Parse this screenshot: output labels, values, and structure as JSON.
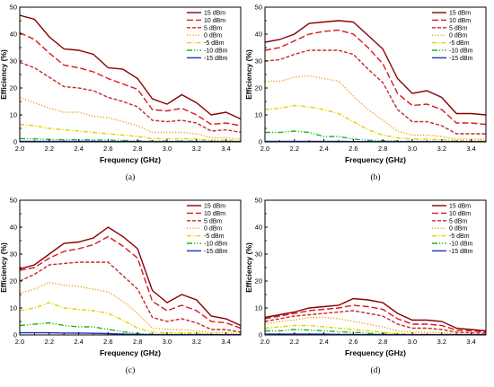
{
  "figure": {
    "colors": {
      "15 dBm": "#8B0000",
      "10 dBm": "#D7191C",
      "5 dBm": "#C62828",
      "0 dBm": "#F39C12",
      "-5 dBm": "#E6D000",
      "-10 dBm": "#1DB322",
      "-15 dBm": "#1F2FBF"
    }
  },
  "chart_data": [
    {
      "type": "line",
      "panel_label": "(a)",
      "xlabel": "Frequency (GHz)",
      "ylabel": "Efficiency (%)",
      "xlim": [
        2.0,
        3.5
      ],
      "ylim": [
        0,
        50
      ],
      "xticks": [
        "2.0",
        "2.2",
        "2.4",
        "2.6",
        "2.8",
        "3.0",
        "3.2",
        "3.4"
      ],
      "yticks": [
        "0",
        "10",
        "20",
        "30",
        "40",
        "50"
      ],
      "legend_position": "top-right",
      "x": [
        2.0,
        2.1,
        2.2,
        2.3,
        2.4,
        2.5,
        2.6,
        2.7,
        2.8,
        2.9,
        3.0,
        3.1,
        3.2,
        3.3,
        3.4,
        3.5
      ],
      "series": [
        {
          "name": "15 dBm",
          "values": [
            47,
            45.5,
            39,
            34.5,
            34,
            32.5,
            27.5,
            27,
            23.5,
            16,
            14,
            17.5,
            14.5,
            10,
            11,
            8.5
          ]
        },
        {
          "name": "10 dBm",
          "values": [
            40.5,
            38,
            33,
            28.5,
            27.5,
            26,
            23.5,
            21.5,
            19.5,
            12,
            11.5,
            12.5,
            10,
            6.5,
            7,
            6
          ]
        },
        {
          "name": "5 dBm",
          "values": [
            29.5,
            27.5,
            24,
            20.5,
            20,
            19,
            16.5,
            15,
            13,
            8,
            7.5,
            8,
            7,
            4,
            4.5,
            3.5
          ]
        },
        {
          "name": "0 dBm",
          "values": [
            16.5,
            14.5,
            12.5,
            11,
            11,
            9.5,
            9,
            7.5,
            6,
            3.5,
            3.5,
            3.5,
            3,
            1.5,
            1.5,
            1
          ]
        },
        {
          "name": "-5 dBm",
          "values": [
            6.5,
            6,
            5,
            4.5,
            4,
            3.5,
            3,
            2.5,
            2,
            1.2,
            1.2,
            1.2,
            1,
            0.6,
            0.6,
            0.5
          ]
        },
        {
          "name": "-10 dBm",
          "values": [
            1.2,
            1.1,
            0.9,
            0.8,
            0.8,
            0.7,
            0.6,
            0.5,
            0.4,
            0.3,
            0.3,
            0.3,
            0.3,
            0.2,
            0.2,
            0.2
          ]
        },
        {
          "name": "-15 dBm",
          "values": [
            0.2,
            0.2,
            0.2,
            0.2,
            0.2,
            0.2,
            0.1,
            0.1,
            0.1,
            0.1,
            0.1,
            0.1,
            0.1,
            0.1,
            0.1,
            0.1
          ]
        }
      ]
    },
    {
      "type": "line",
      "panel_label": "(b)",
      "xlabel": "Frequency (GHz)",
      "ylabel": "Efficiency (%)",
      "xlim": [
        2.0,
        3.5
      ],
      "ylim": [
        0,
        50
      ],
      "xticks": [
        "2.0",
        "2.2",
        "2.4",
        "2.6",
        "2.8",
        "3.0",
        "3.2",
        "3.4"
      ],
      "yticks": [
        "0",
        "10",
        "20",
        "30",
        "40",
        "50"
      ],
      "legend_position": "top-right",
      "x": [
        2.0,
        2.1,
        2.2,
        2.3,
        2.4,
        2.5,
        2.6,
        2.7,
        2.8,
        2.9,
        3.0,
        3.1,
        3.2,
        3.3,
        3.4,
        3.5
      ],
      "series": [
        {
          "name": "15 dBm",
          "values": [
            37,
            38,
            40,
            44,
            44.5,
            45,
            44.5,
            39.5,
            34.5,
            23.5,
            18,
            19,
            16.5,
            10.5,
            10.5,
            10
          ]
        },
        {
          "name": "10 dBm",
          "values": [
            34,
            35,
            37.5,
            40,
            41,
            41.5,
            40,
            35,
            29,
            18,
            13.5,
            14,
            12,
            7,
            7,
            6.5
          ]
        },
        {
          "name": "5 dBm",
          "values": [
            30,
            30.5,
            32.5,
            34,
            34,
            34,
            32.5,
            27,
            22,
            12,
            7.5,
            7.5,
            6,
            3,
            3,
            3
          ]
        },
        {
          "name": "0 dBm",
          "values": [
            22.5,
            22.5,
            24,
            24.5,
            23.5,
            22.5,
            17,
            12,
            8,
            4,
            2.5,
            2.5,
            2,
            1,
            1,
            1
          ]
        },
        {
          "name": "-5 dBm",
          "values": [
            12,
            12.5,
            13.5,
            13,
            12,
            10.5,
            7.5,
            4.5,
            2.5,
            1.5,
            1,
            1,
            0.8,
            0.5,
            0.5,
            0.5
          ]
        },
        {
          "name": "-10 dBm",
          "values": [
            3.5,
            3.5,
            4,
            3.5,
            2,
            2,
            1,
            0.6,
            0.4,
            0.3,
            0.2,
            0.2,
            0.2,
            0.1,
            0.1,
            0.1
          ]
        },
        {
          "name": "-15 dBm",
          "values": [
            0.2,
            0.2,
            0.2,
            0.2,
            0.2,
            0.2,
            0.1,
            0.1,
            0.1,
            0.1,
            0.1,
            0.1,
            0.1,
            0.1,
            0.1,
            0.1
          ]
        }
      ]
    },
    {
      "type": "line",
      "panel_label": "(c)",
      "xlabel": "Frequency (GHz)",
      "ylabel": "Efficiency (%)",
      "xlim": [
        2.0,
        3.5
      ],
      "ylim": [
        0,
        50
      ],
      "xticks": [
        "2.0",
        "2.2",
        "2.4",
        "2.6",
        "2.8",
        "3.0",
        "3.2",
        "3.4"
      ],
      "yticks": [
        "0",
        "10",
        "20",
        "30",
        "40",
        "50"
      ],
      "legend_position": "top-right",
      "x": [
        2.0,
        2.1,
        2.2,
        2.3,
        2.4,
        2.5,
        2.6,
        2.7,
        2.8,
        2.9,
        3.0,
        3.1,
        3.2,
        3.3,
        3.4,
        3.5
      ],
      "series": [
        {
          "name": "15 dBm",
          "values": [
            24.5,
            26,
            30,
            34,
            34.5,
            36,
            40,
            36.5,
            32,
            16.5,
            12,
            15,
            13,
            7,
            6,
            3.5
          ]
        },
        {
          "name": "10 dBm",
          "values": [
            24,
            25,
            28.5,
            31,
            32,
            33.5,
            36.5,
            33,
            28.5,
            12.5,
            9,
            11,
            9,
            5,
            4.5,
            2.5
          ]
        },
        {
          "name": "5 dBm",
          "values": [
            20,
            22.5,
            26,
            26.5,
            27,
            27,
            27,
            22,
            17,
            6.5,
            5,
            6,
            4.5,
            2,
            2,
            1
          ]
        },
        {
          "name": "0 dBm",
          "values": [
            15.5,
            17,
            19.5,
            18.5,
            18,
            17,
            16,
            12.5,
            8,
            2.5,
            2,
            2,
            1.5,
            0.8,
            0.8,
            0.5
          ]
        },
        {
          "name": "-5 dBm",
          "values": [
            9,
            10,
            12,
            10,
            9.5,
            9,
            8,
            5.5,
            2.5,
            1,
            0.8,
            0.8,
            0.6,
            0.3,
            0.3,
            0.2
          ]
        },
        {
          "name": "-10 dBm",
          "values": [
            3.5,
            4,
            4.5,
            3.5,
            3,
            3,
            2,
            1.2,
            0.5,
            0.3,
            0.2,
            0.2,
            0.2,
            0.1,
            0.1,
            0.1
          ]
        },
        {
          "name": "-15 dBm",
          "values": [
            0.8,
            0.8,
            0.8,
            0.7,
            0.7,
            0.6,
            0.5,
            0.3,
            0.2,
            0.1,
            0.1,
            0.1,
            0.1,
            0.1,
            0.1,
            0.1
          ]
        }
      ]
    },
    {
      "type": "line",
      "panel_label": "(d)",
      "xlabel": "Frequency (GHz)",
      "ylabel": "Efficiency (%)",
      "xlim": [
        2.0,
        3.5
      ],
      "ylim": [
        0,
        50
      ],
      "xticks": [
        "2.0",
        "2.2",
        "2.4",
        "2.6",
        "2.8",
        "3.0",
        "3.2",
        "3.4"
      ],
      "yticks": [
        "0",
        "10",
        "20",
        "30",
        "40",
        "50"
      ],
      "legend_position": "top-right",
      "x": [
        2.0,
        2.1,
        2.2,
        2.3,
        2.4,
        2.5,
        2.6,
        2.7,
        2.8,
        2.9,
        3.0,
        3.1,
        3.2,
        3.3,
        3.4,
        3.5
      ],
      "series": [
        {
          "name": "15 dBm",
          "values": [
            6.5,
            7.5,
            8.5,
            10,
            10.5,
            11,
            13.5,
            13,
            12,
            8,
            5.5,
            5.5,
            5,
            2.5,
            2,
            1.5
          ]
        },
        {
          "name": "10 dBm",
          "values": [
            6,
            7,
            8,
            9,
            9.5,
            10,
            11,
            10.5,
            9.5,
            6,
            4,
            4,
            3.5,
            1.8,
            1.5,
            1
          ]
        },
        {
          "name": "5 dBm",
          "values": [
            5,
            6,
            7,
            7.5,
            8,
            8.5,
            9,
            8,
            7,
            4,
            2.5,
            2.5,
            2,
            1,
            0.8,
            0.6
          ]
        },
        {
          "name": "0 dBm",
          "values": [
            4,
            5,
            5.5,
            6.5,
            6.5,
            6,
            5,
            4,
            3,
            1.5,
            1,
            1,
            0.8,
            0.4,
            0.3,
            0.2
          ]
        },
        {
          "name": "-5 dBm",
          "values": [
            2.5,
            3,
            3.5,
            3.5,
            3,
            2.5,
            2,
            1.5,
            1,
            0.5,
            0.3,
            0.3,
            0.3,
            0.2,
            0.1,
            0.1
          ]
        },
        {
          "name": "-10 dBm",
          "values": [
            1.5,
            1.5,
            2,
            1.8,
            1.5,
            1.2,
            1,
            0.6,
            0.4,
            0.2,
            0.1,
            0.1,
            0.1,
            0.1,
            0.1,
            0.1
          ]
        },
        {
          "name": "-15 dBm",
          "values": [
            0.3,
            0.3,
            0.3,
            0.3,
            0.3,
            0.2,
            0.2,
            0.1,
            0.1,
            0.1,
            0.1,
            0.1,
            0.1,
            0.1,
            0.1,
            0.1
          ]
        }
      ]
    }
  ]
}
